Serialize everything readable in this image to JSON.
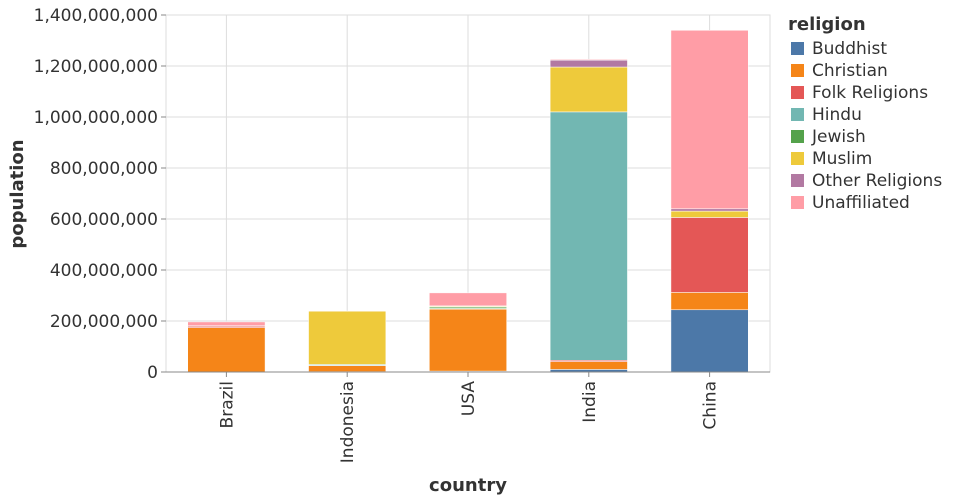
{
  "chart_data": {
    "type": "bar",
    "stacked": true,
    "orientation": "vertical",
    "xlabel": "country",
    "ylabel": "population",
    "ylim": [
      0,
      1400000000
    ],
    "yticks": [
      {
        "value": 0,
        "label": "0"
      },
      {
        "value": 200000000,
        "label": "200,000,000"
      },
      {
        "value": 400000000,
        "label": "400,000,000"
      },
      {
        "value": 600000000,
        "label": "600,000,000"
      },
      {
        "value": 800000000,
        "label": "800,000,000"
      },
      {
        "value": 1000000000,
        "label": "1,000,000,000"
      },
      {
        "value": 1200000000,
        "label": "1,200,000,000"
      },
      {
        "value": 1400000000,
        "label": "1,400,000,000"
      }
    ],
    "grid": true,
    "legend_position": "right",
    "legend_title": "religion",
    "categories": [
      "Brazil",
      "Indonesia",
      "USA",
      "India",
      "China"
    ],
    "series": [
      {
        "name": "Buddhist",
        "color": "#4c78a8",
        "values": [
          300000,
          1600000,
          3600000,
          10000000,
          244000000
        ]
      },
      {
        "name": "Christian",
        "color": "#f58518",
        "values": [
          174000000,
          23000000,
          243000000,
          31000000,
          68000000
        ]
      },
      {
        "name": "Folk Religions",
        "color": "#e45756",
        "values": [
          5000000,
          1000000,
          600000,
          5000000,
          294000000
        ]
      },
      {
        "name": "Hindu",
        "color": "#72b7b2",
        "values": [
          0,
          4000000,
          1800000,
          974000000,
          0
        ]
      },
      {
        "name": "Jewish",
        "color": "#54a24b",
        "values": [
          100000,
          0,
          5700000,
          0,
          0
        ]
      },
      {
        "name": "Muslim",
        "color": "#eeca3b",
        "values": [
          0,
          209000000,
          2800000,
          176000000,
          25000000
        ]
      },
      {
        "name": "Other Religions",
        "color": "#b279a2",
        "values": [
          2000000,
          300000,
          1800000,
          27000000,
          9000000
        ]
      },
      {
        "name": "Unaffiliated",
        "color": "#ff9da6",
        "values": [
          15000000,
          0,
          51000000,
          3000000,
          700000000
        ]
      }
    ]
  }
}
